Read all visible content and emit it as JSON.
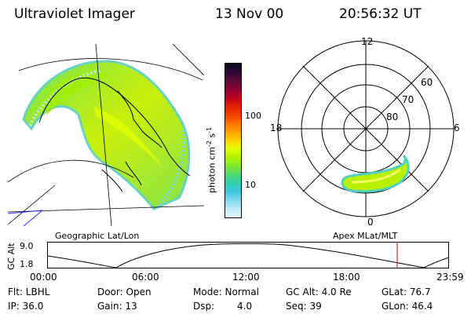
{
  "header": {
    "instrument": "Ultraviolet Imager",
    "date": "13 Nov 00",
    "time": "20:56:32 UT"
  },
  "colorbar": {
    "unit_label": "photon cm",
    "unit_exp1": "-2",
    "unit_mid": "s",
    "unit_exp2": "-1",
    "ticks": [
      "100",
      "10"
    ],
    "colors": [
      "#0b0b22",
      "#2a0530",
      "#5a0a3a",
      "#8a0030",
      "#c00020",
      "#e02000",
      "#f04000",
      "#ff7000",
      "#ffa000",
      "#ffd000",
      "#e0ff00",
      "#b0f000",
      "#80e830",
      "#50d870",
      "#30d0b0",
      "#40c8e0",
      "#80d8f0",
      "#c0eaf8",
      "#e8f6ff"
    ]
  },
  "left_panel": {
    "caption": "Geographic Lat/Lon"
  },
  "right_panel": {
    "caption": "Apex MLat/MLT",
    "mlt_labels": {
      "top": "12",
      "left": "18",
      "right": "6",
      "bottom": "0"
    },
    "lat_labels": [
      "60",
      "70",
      "80"
    ]
  },
  "timeline": {
    "ylabel": "GC Alt",
    "yticks": [
      "9.0",
      "1.8"
    ],
    "xticks": [
      "00:00",
      "06:00",
      "12:00",
      "18:00",
      "23:59"
    ],
    "marker_color": "#c00000"
  },
  "footer": {
    "row1": {
      "flt": "Flt: LBHL",
      "door": "Door: Open",
      "mode": "Mode: Normal",
      "gcalt": "GC Alt: 4.0 Re",
      "glat": "GLat: 76.7"
    },
    "row2": {
      "ip": "IP: 36.0",
      "gain": "Gain: 13",
      "dsp_label": "Dsp:",
      "dsp_value": "4.0",
      "seq": "Seq: 39",
      "glon": "GLon: 46.4"
    }
  }
}
